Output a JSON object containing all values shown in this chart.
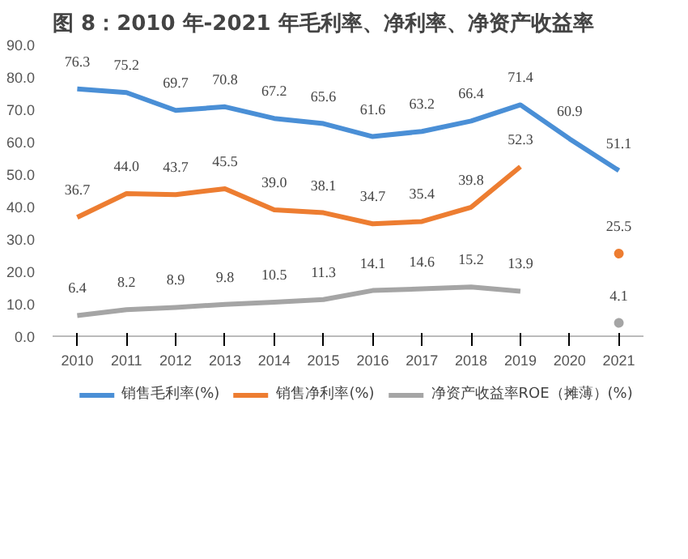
{
  "chart_data": {
    "type": "line",
    "title": "图 8：2010 年-2021 年毛利率、净利率、净资产收益率",
    "categories": [
      "2010",
      "2011",
      "2012",
      "2013",
      "2014",
      "2015",
      "2016",
      "2017",
      "2018",
      "2019",
      "2020",
      "2021"
    ],
    "series": [
      {
        "name": "销售毛利率(%)",
        "color": "#4a8fd6",
        "values": [
          76.3,
          75.2,
          69.7,
          70.8,
          67.2,
          65.6,
          61.6,
          63.2,
          66.4,
          71.4,
          60.9,
          51.1
        ],
        "value_labels": [
          "76.3",
          "75.2",
          "69.7",
          "70.8",
          "67.2",
          "65.6",
          "61.6",
          "63.2",
          "66.4",
          "71.4",
          "60.9",
          "51.1"
        ]
      },
      {
        "name": "销售净利率(%)",
        "color": "#ed7d31",
        "values": [
          36.7,
          44,
          43.7,
          45.5,
          39,
          38.1,
          34.7,
          35.4,
          39.8,
          52.3,
          null,
          25.5
        ],
        "value_labels": [
          "36.7",
          "44.0",
          "43.7",
          "45.5",
          "39.0",
          "38.1",
          "34.7",
          "35.4",
          "39.8",
          "52.3",
          null,
          "25.5"
        ]
      },
      {
        "name": "净资产收益率ROE（摊薄）(%)",
        "color": "#a5a5a5",
        "values": [
          6.4,
          8.2,
          8.9,
          9.8,
          10.5,
          11.3,
          14.1,
          14.6,
          15.2,
          13.9,
          null,
          4.1
        ],
        "value_labels": [
          "6.4",
          "8.2",
          "8.9",
          "9.8",
          "10.5",
          "11.3",
          "14.1",
          "14.6",
          "15.2",
          "13.9",
          null,
          "4.1"
        ]
      }
    ],
    "ylim": [
      0,
      90
    ],
    "yticks": [
      {
        "value": 0,
        "label": "0.0"
      },
      {
        "value": 10,
        "label": "10.0"
      },
      {
        "value": 20,
        "label": "20.0"
      },
      {
        "value": 30,
        "label": "30.0"
      },
      {
        "value": 40,
        "label": "40.0"
      },
      {
        "value": 50,
        "label": "50.0"
      },
      {
        "value": 60,
        "label": "60.0"
      },
      {
        "value": 70,
        "label": "70.0"
      },
      {
        "value": 80,
        "label": "80.0"
      },
      {
        "value": 90,
        "label": "90.0"
      }
    ],
    "legend": "bottom",
    "grid": false,
    "marker": "none",
    "line_style": "solid"
  }
}
